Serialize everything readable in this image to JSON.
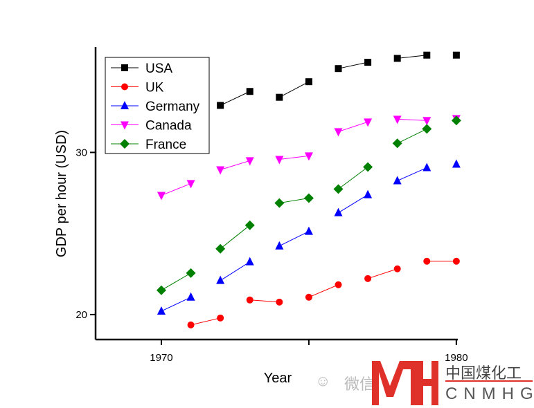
{
  "chart_data": {
    "type": "line",
    "title": "",
    "xlabel": "Year",
    "ylabel": "GDP per hour (USD)",
    "xlim": [
      1967.77,
      1980.05
    ],
    "ylim": [
      18.46,
      36.5
    ],
    "x_ticks": [
      1970,
      1975,
      1980
    ],
    "x_tick_labels": [
      "1970",
      "",
      "1980"
    ],
    "y_ticks": [
      20,
      30
    ],
    "y_tick_labels": [
      "20",
      "30"
    ],
    "grid": false,
    "legend_position": "top-left",
    "series": [
      {
        "name": "USA",
        "color": "#000000",
        "marker": "square",
        "x": [
          1972,
          1973,
          1974,
          1975,
          1976,
          1977,
          1978,
          1979,
          1980
        ],
        "values": [
          32.9,
          33.76,
          33.4,
          34.36,
          35.17,
          35.56,
          35.8,
          36.0,
          36.0
        ],
        "segments": [
          [
            1972,
            1973
          ],
          [
            1974,
            1975
          ],
          [
            1976,
            1977
          ],
          [
            1978,
            1979
          ]
        ]
      },
      {
        "name": "UK",
        "color": "#ff0000",
        "marker": "circle",
        "x": [
          1971,
          1972,
          1973,
          1974,
          1975,
          1976,
          1977,
          1978,
          1979,
          1980
        ],
        "values": [
          19.36,
          19.79,
          20.9,
          20.77,
          21.07,
          21.84,
          22.22,
          22.82,
          23.29,
          23.29
        ],
        "segments": [
          [
            1971,
            1972
          ],
          [
            1973,
            1974
          ],
          [
            1975,
            1976
          ],
          [
            1977,
            1978
          ],
          [
            1979,
            1980
          ]
        ]
      },
      {
        "name": "Germany",
        "color": "#0000ff",
        "marker": "triangle-up",
        "x": [
          1970,
          1971,
          1972,
          1973,
          1974,
          1975,
          1976,
          1977,
          1978,
          1979,
          1980
        ],
        "values": [
          20.21,
          21.07,
          22.1,
          23.25,
          24.23,
          25.13,
          26.28,
          27.39,
          28.25,
          29.06,
          29.27
        ],
        "segments": [
          [
            1970,
            1971
          ],
          [
            1972,
            1973
          ],
          [
            1974,
            1975
          ],
          [
            1976,
            1977
          ],
          [
            1978,
            1979
          ]
        ]
      },
      {
        "name": "Canada",
        "color": "#ff00ff",
        "marker": "triangle-down",
        "x": [
          1970,
          1971,
          1972,
          1973,
          1974,
          1975,
          1976,
          1977,
          1978,
          1979,
          1980
        ],
        "values": [
          27.35,
          28.08,
          28.93,
          29.49,
          29.57,
          29.79,
          31.28,
          31.88,
          32.05,
          31.97,
          32.09
        ],
        "segments": [
          [
            1970,
            1971
          ],
          [
            1972,
            1973
          ],
          [
            1974,
            1975
          ],
          [
            1976,
            1977
          ],
          [
            1978,
            1979
          ]
        ]
      },
      {
        "name": "France",
        "color": "#008000",
        "marker": "diamond",
        "x": [
          1970,
          1971,
          1972,
          1973,
          1974,
          1975,
          1976,
          1977,
          1978,
          1979,
          1980
        ],
        "values": [
          21.5,
          22.56,
          24.06,
          25.51,
          26.88,
          27.18,
          27.74,
          29.1,
          30.56,
          31.45,
          31.97
        ],
        "segments": [
          [
            1970,
            1971
          ],
          [
            1972,
            1973
          ],
          [
            1974,
            1975
          ],
          [
            1976,
            1977
          ],
          [
            1978,
            1979
          ]
        ]
      }
    ]
  },
  "watermark": {
    "wechat": "微信",
    "logo_cn": "中国煤化工",
    "logo_en": "CNMHG",
    "logo_mark": "MH",
    "color": "#e0302a"
  }
}
